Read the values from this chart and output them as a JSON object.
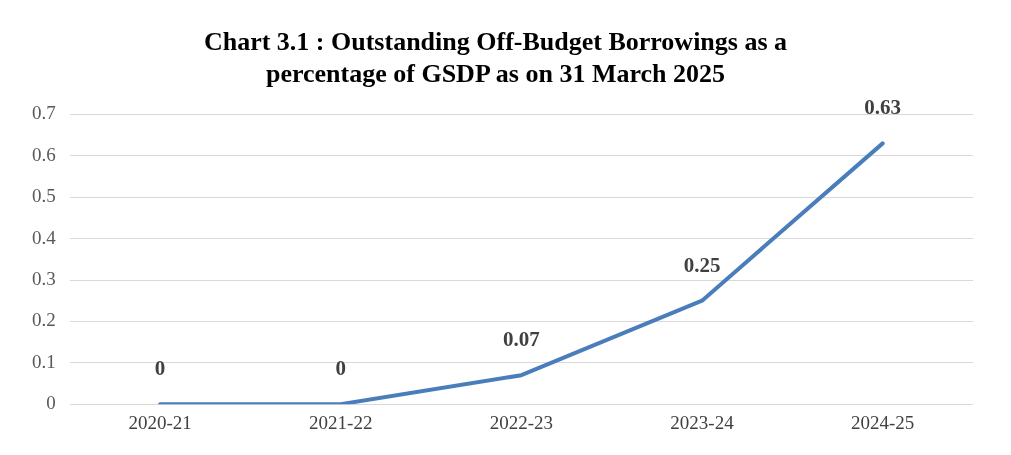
{
  "chart_data": {
    "type": "line",
    "title": "Chart 3.1 : Outstanding Off-Budget Borrowings as a\npercentage of GSDP as on 31 March 2025",
    "categories": [
      "2020-21",
      "2021-22",
      "2022-23",
      "2023-24",
      "2024-25"
    ],
    "series": [
      {
        "color": "#4a7ebb",
        "values": [
          0,
          0,
          0.07,
          0.25,
          0.63
        ]
      }
    ],
    "ylim": [
      0,
      0.7
    ],
    "yticks": [
      0,
      0.1,
      0.2,
      0.3,
      0.4,
      0.5,
      0.6,
      0.7
    ],
    "grid": "y",
    "data_labels": true,
    "legend": false,
    "marker": "none",
    "line_style": "solid"
  }
}
